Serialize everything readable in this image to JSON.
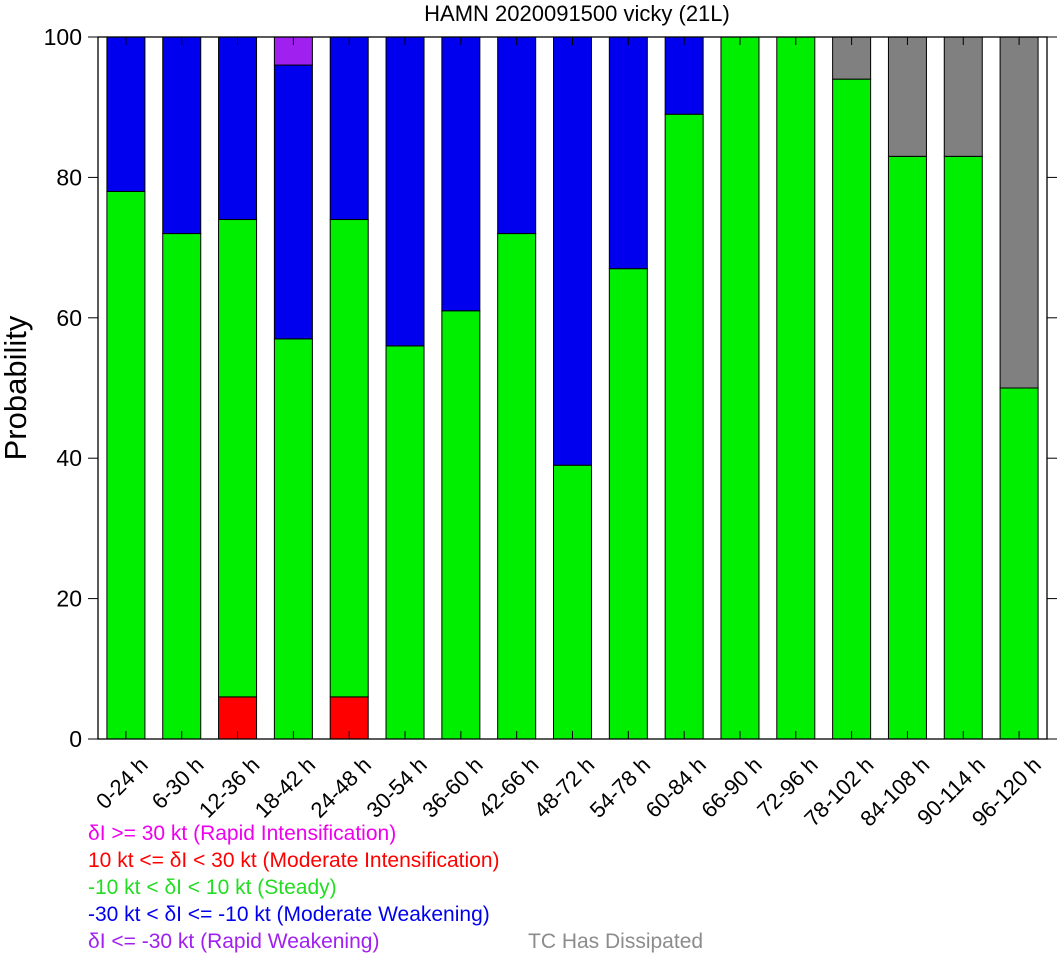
{
  "chart_data": {
    "type": "bar",
    "stacked": true,
    "title": "HAMN 2020091500 vicky (21L)",
    "xlabel": "",
    "ylabel": "Probability",
    "ylim": [
      0,
      100
    ],
    "yticks": [
      0,
      20,
      40,
      60,
      80,
      100
    ],
    "categories": [
      "0-24 h",
      "6-30 h",
      "12-36 h",
      "18-42 h",
      "24-48 h",
      "30-54 h",
      "36-60 h",
      "42-66 h",
      "48-72 h",
      "54-78 h",
      "60-84 h",
      "66-90 h",
      "72-96 h",
      "78-102 h",
      "84-108 h",
      "90-114 h",
      "96-120 h"
    ],
    "series": [
      {
        "name": "δI >= 30 kt (Rapid Intensification)",
        "color": "#ff00ff",
        "values": [
          0,
          0,
          0,
          0,
          0,
          0,
          0,
          0,
          0,
          0,
          0,
          0,
          0,
          0,
          0,
          0,
          0
        ]
      },
      {
        "name": "10 kt <= δI < 30 kt (Moderate Intensification)",
        "color": "#ff0000",
        "values": [
          0,
          0,
          6,
          0,
          6,
          0,
          0,
          0,
          0,
          0,
          0,
          0,
          0,
          0,
          0,
          0,
          0
        ]
      },
      {
        "name": "-10 kt < δI < 10 kt (Steady)",
        "color": "#00ee00",
        "values": [
          78,
          72,
          68,
          57,
          68,
          56,
          61,
          72,
          39,
          67,
          89,
          100,
          100,
          94,
          83,
          83,
          50
        ]
      },
      {
        "name": "-30 kt < δI <= -10 kt (Moderate Weakening)",
        "color": "#0000ee",
        "values": [
          22,
          28,
          26,
          39,
          26,
          44,
          39,
          28,
          61,
          33,
          11,
          0,
          0,
          0,
          0,
          0,
          0
        ]
      },
      {
        "name": "δI <= -30 kt (Rapid Weakening)",
        "color": "#a020f0",
        "values": [
          0,
          0,
          0,
          4,
          0,
          0,
          0,
          0,
          0,
          0,
          0,
          0,
          0,
          0,
          0,
          0,
          0
        ]
      },
      {
        "name": "TC Has Dissipated",
        "color": "#808080",
        "values": [
          0,
          0,
          0,
          0,
          0,
          0,
          0,
          0,
          0,
          0,
          0,
          0,
          0,
          6,
          17,
          17,
          50
        ]
      }
    ]
  }
}
